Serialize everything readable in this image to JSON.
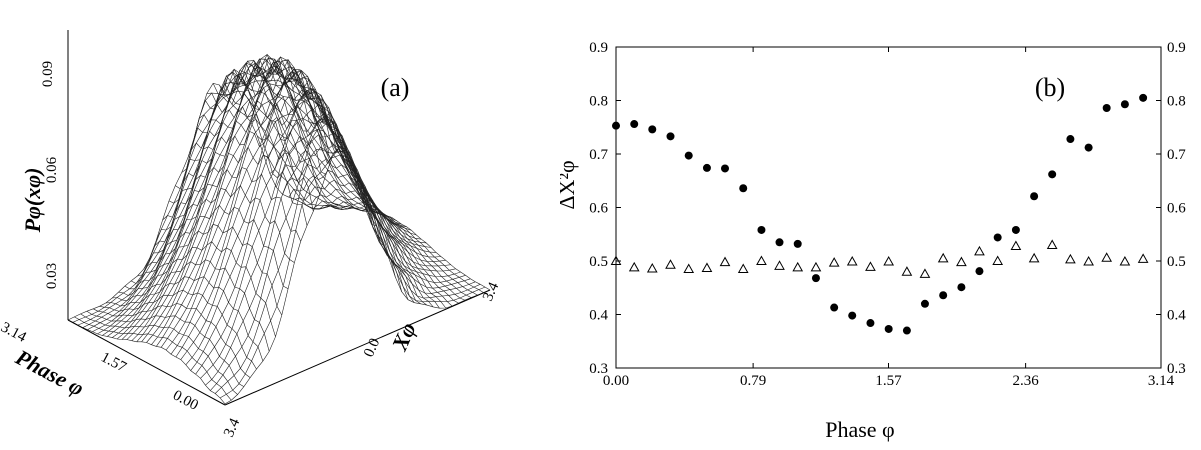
{
  "chart_data": [
    {
      "panel": "(a)",
      "type": "surface",
      "z_label": "Pφ(xφ)",
      "x_label": "Xφ",
      "y_label": "Phase φ",
      "z_ticks": [
        "0.03",
        "0.06",
        "0.09"
      ],
      "x_ticks": [
        "3.4",
        "0.0",
        "3.4"
      ],
      "y_ticks": [
        "3.14",
        "1.57",
        "0.00"
      ],
      "zlim": [
        0,
        0.09
      ],
      "x_range": [
        -3.4,
        3.4
      ],
      "y_range": [
        0,
        3.14
      ]
    },
    {
      "panel": "(b)",
      "type": "scatter",
      "xlabel": "Phase φ",
      "ylabel": "ΔX²φ",
      "x_ticks": [
        "0.00",
        "0.79",
        "1.57",
        "2.36",
        "3.14"
      ],
      "y_ticks": [
        "0.3",
        "0.4",
        "0.5",
        "0.6",
        "0.7",
        "0.8",
        "0.9"
      ],
      "xlim": [
        0,
        3.14
      ],
      "ylim": [
        0.3,
        0.9
      ],
      "series": [
        {
          "marker": "filled-circle",
          "points": [
            [
              0.0,
              0.753
            ],
            [
              0.105,
              0.756
            ],
            [
              0.209,
              0.746
            ],
            [
              0.314,
              0.733
            ],
            [
              0.419,
              0.697
            ],
            [
              0.524,
              0.674
            ],
            [
              0.628,
              0.673
            ],
            [
              0.733,
              0.636
            ],
            [
              0.838,
              0.558
            ],
            [
              0.942,
              0.535
            ],
            [
              1.047,
              0.532
            ],
            [
              1.152,
              0.468
            ],
            [
              1.257,
              0.413
            ],
            [
              1.361,
              0.398
            ],
            [
              1.466,
              0.384
            ],
            [
              1.571,
              0.373
            ],
            [
              1.676,
              0.37
            ],
            [
              1.78,
              0.42
            ],
            [
              1.885,
              0.436
            ],
            [
              1.99,
              0.451
            ],
            [
              2.094,
              0.481
            ],
            [
              2.199,
              0.544
            ],
            [
              2.304,
              0.558
            ],
            [
              2.409,
              0.621
            ],
            [
              2.513,
              0.662
            ],
            [
              2.618,
              0.728
            ],
            [
              2.723,
              0.712
            ],
            [
              2.827,
              0.786
            ],
            [
              2.932,
              0.793
            ],
            [
              3.037,
              0.805
            ]
          ]
        },
        {
          "marker": "open-triangle",
          "points": [
            [
              0.0,
              0.5
            ],
            [
              0.105,
              0.488
            ],
            [
              0.209,
              0.486
            ],
            [
              0.314,
              0.493
            ],
            [
              0.419,
              0.485
            ],
            [
              0.524,
              0.487
            ],
            [
              0.628,
              0.498
            ],
            [
              0.733,
              0.485
            ],
            [
              0.838,
              0.5
            ],
            [
              0.942,
              0.491
            ],
            [
              1.047,
              0.488
            ],
            [
              1.152,
              0.488
            ],
            [
              1.257,
              0.497
            ],
            [
              1.361,
              0.499
            ],
            [
              1.466,
              0.489
            ],
            [
              1.571,
              0.499
            ],
            [
              1.676,
              0.48
            ],
            [
              1.78,
              0.476
            ],
            [
              1.885,
              0.505
            ],
            [
              1.99,
              0.498
            ],
            [
              2.094,
              0.518
            ],
            [
              2.199,
              0.5
            ],
            [
              2.304,
              0.528
            ],
            [
              2.409,
              0.505
            ],
            [
              2.513,
              0.53
            ],
            [
              2.618,
              0.503
            ],
            [
              2.723,
              0.499
            ],
            [
              2.827,
              0.506
            ],
            [
              2.932,
              0.499
            ],
            [
              3.037,
              0.504
            ]
          ]
        }
      ]
    }
  ]
}
